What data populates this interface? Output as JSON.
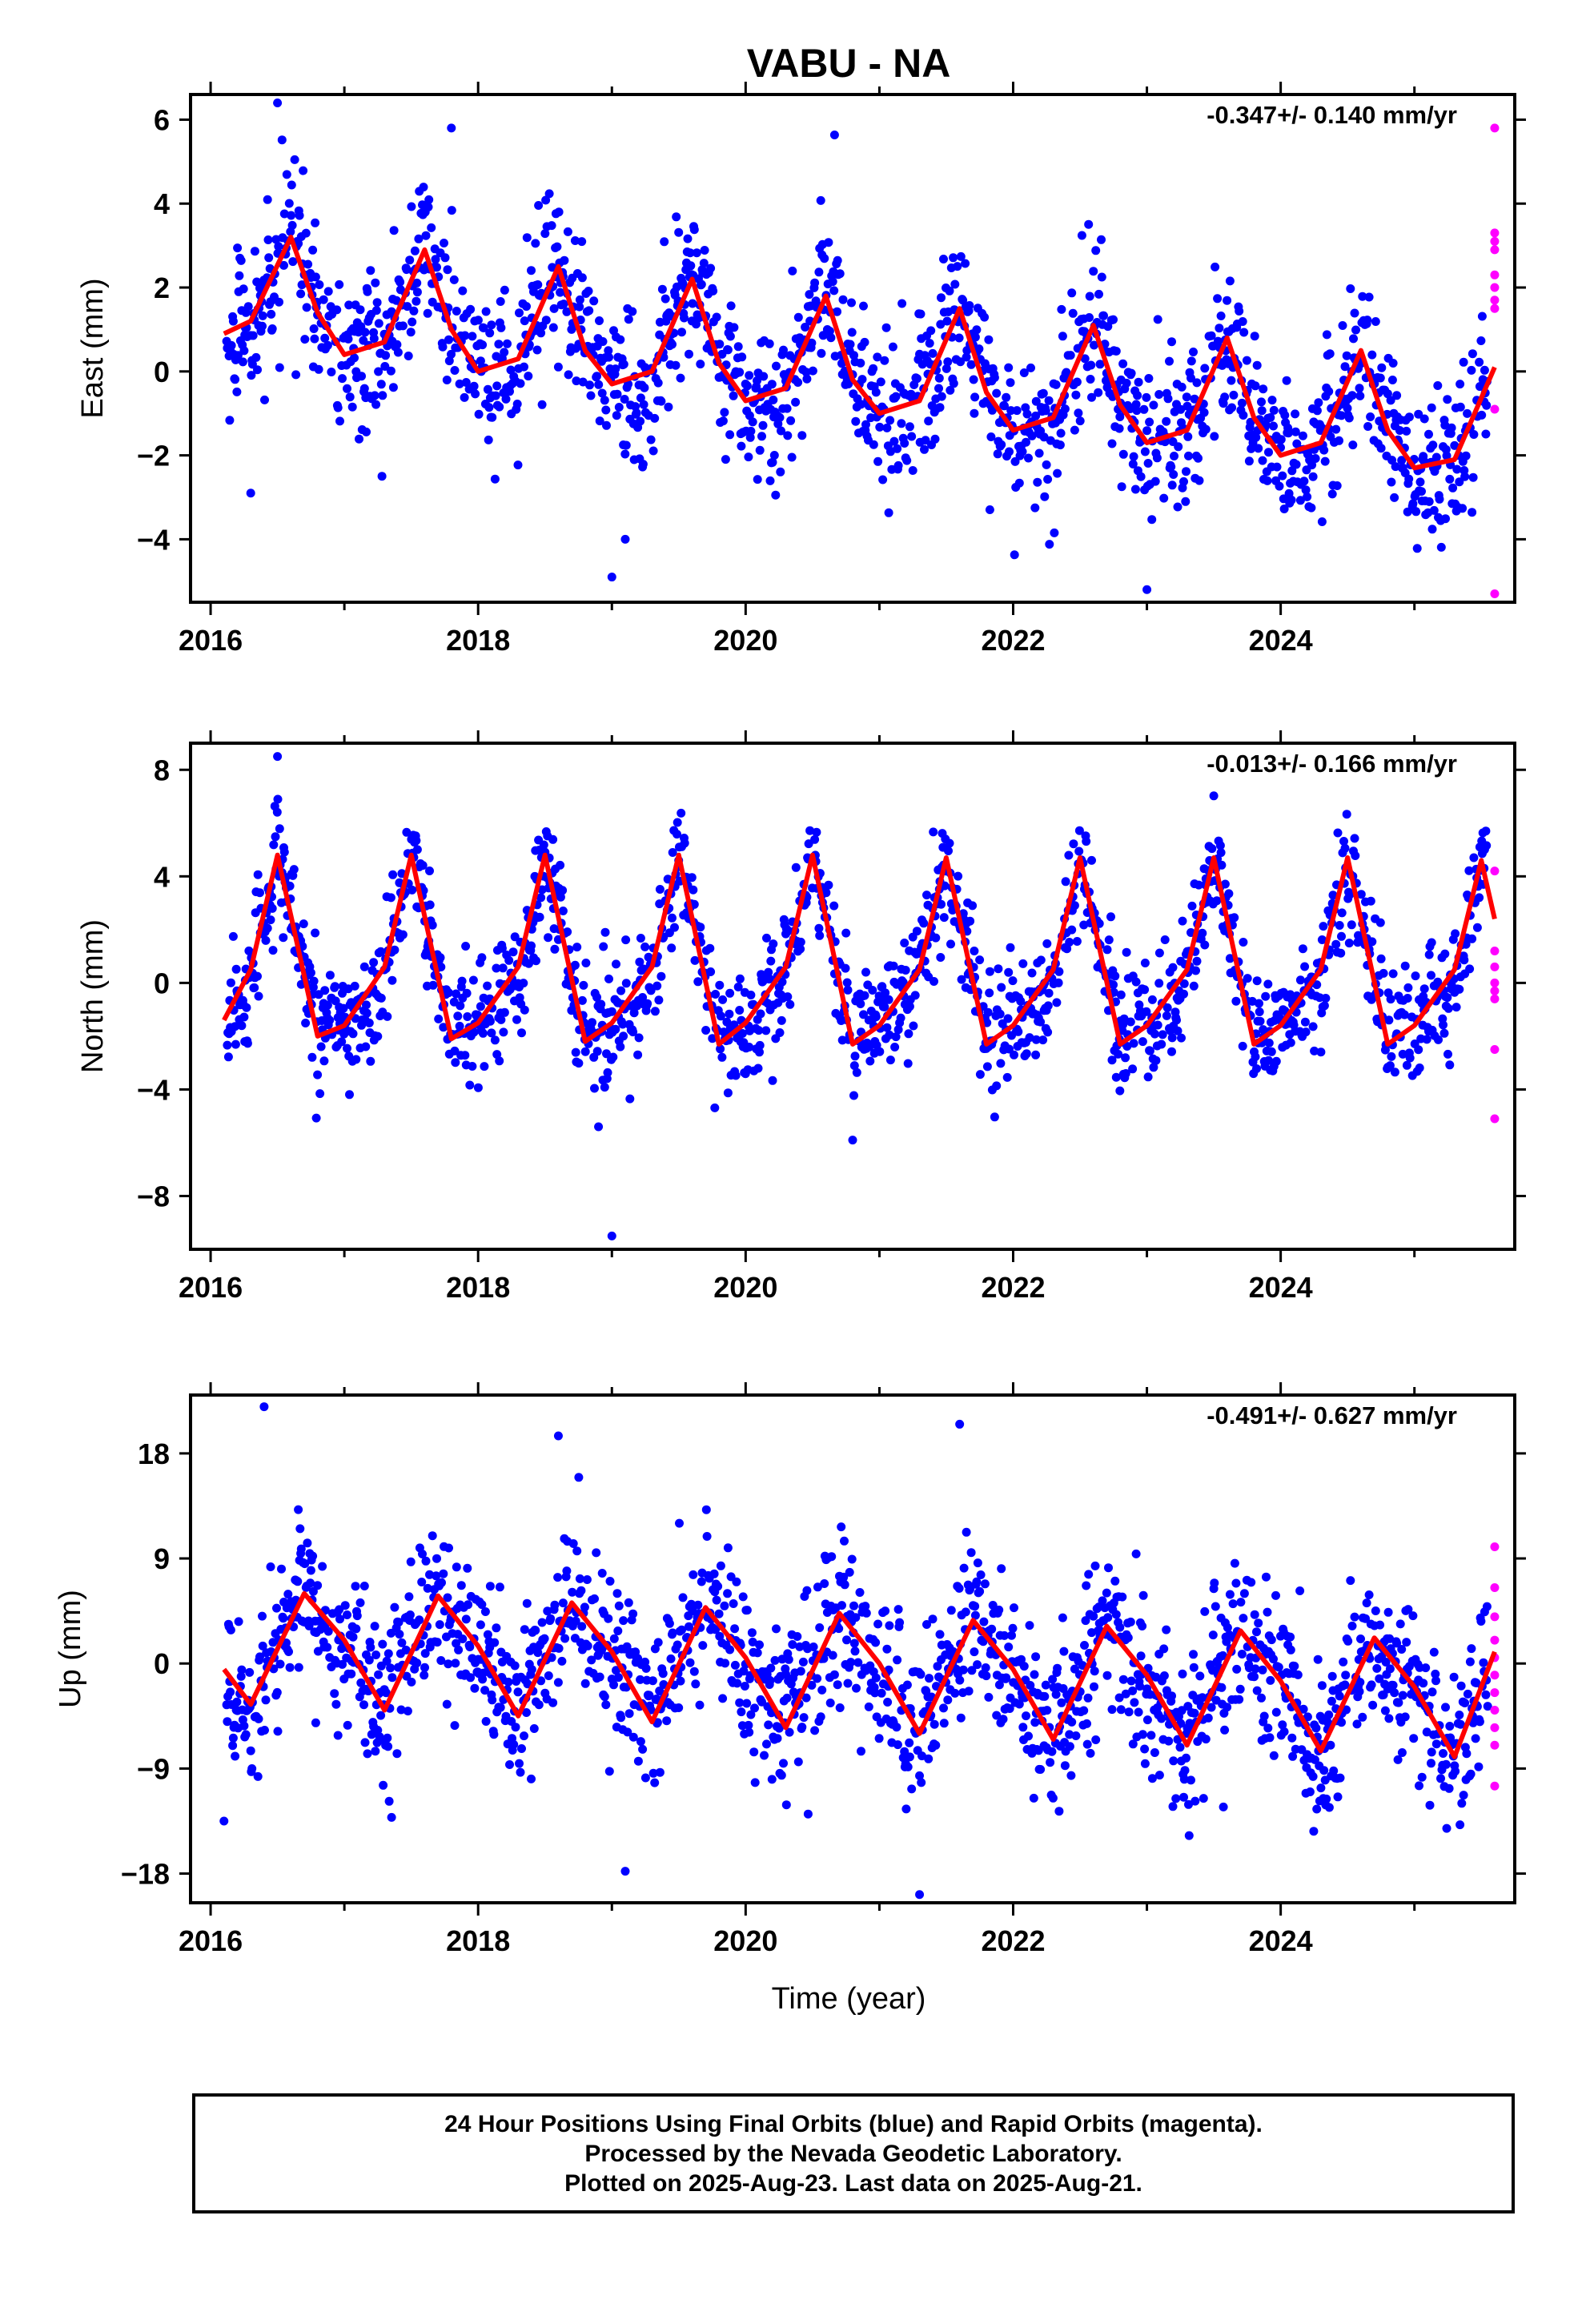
{
  "title": "VABU - NA",
  "xlabel": "Time (year)",
  "x_tick_labels": [
    "2016",
    "2018",
    "2020",
    "2022",
    "2024"
  ],
  "colors": {
    "final_orbits": "#0000ff",
    "rapid_orbits": "#ff00ff",
    "model_fit": "#ff0000"
  },
  "footer": {
    "line1": "24 Hour Positions Using Final Orbits (blue) and Rapid Orbits (magenta).",
    "line2": "Processed by the Nevada Geodetic Laboratory.",
    "line3": "Plotted on 2025-Aug-23. Last data on 2025-Aug-21."
  },
  "chart_data": [
    {
      "type": "scatter",
      "ylabel": "East (mm)",
      "rate": "-0.347+/- 0.140 mm/yr",
      "xlim": [
        2015.85,
        2025.75
      ],
      "ylim": [
        -5.5,
        6.6
      ],
      "y_ticks": [
        6,
        4,
        2,
        0,
        -2,
        -4
      ],
      "y_tick_labels": [
        "6",
        "4",
        "2",
        "0",
        "−2",
        "−4"
      ],
      "fit_curve": {
        "name": "model",
        "x": [
          2016.1,
          2016.3,
          2016.6,
          2016.8,
          2017.0,
          2017.3,
          2017.6,
          2017.8,
          2018.0,
          2018.3,
          2018.6,
          2018.8,
          2019.0,
          2019.3,
          2019.6,
          2019.8,
          2020.0,
          2020.3,
          2020.6,
          2020.8,
          2021.0,
          2021.3,
          2021.6,
          2021.8,
          2022.0,
          2022.3,
          2022.6,
          2022.8,
          2023.0,
          2023.3,
          2023.6,
          2023.8,
          2024.0,
          2024.3,
          2024.6,
          2024.8,
          2025.0,
          2025.3,
          2025.6
        ],
        "y": [
          0.9,
          1.2,
          3.2,
          1.4,
          0.4,
          0.7,
          2.9,
          1.0,
          0.0,
          0.3,
          2.5,
          0.5,
          -0.3,
          0.0,
          2.2,
          0.2,
          -0.7,
          -0.4,
          1.8,
          -0.2,
          -1.0,
          -0.7,
          1.5,
          -0.5,
          -1.4,
          -1.1,
          1.1,
          -0.8,
          -1.7,
          -1.4,
          0.8,
          -1.1,
          -2.0,
          -1.7,
          0.5,
          -1.4,
          -2.3,
          -2.1,
          0.1
        ]
      },
      "outliers_final": {
        "x": [
          2016.5,
          2019.0,
          2019.1,
          2023.0,
          2016.3,
          2017.8
        ],
        "y": [
          6.4,
          -4.9,
          -4.0,
          -5.2,
          -2.9,
          5.8
        ]
      },
      "rapid_points": {
        "x": [
          2025.6,
          2025.6,
          2025.6,
          2025.6,
          2025.6,
          2025.6,
          2025.6,
          2025.6,
          2025.6,
          2025.6
        ],
        "y": [
          5.8,
          3.3,
          3.1,
          2.9,
          2.3,
          2.0,
          1.7,
          1.5,
          -0.9,
          -5.3
        ]
      },
      "scatter_model": {
        "amp": 2.0,
        "trend": -0.347,
        "offset": 1.4,
        "noise": 0.9,
        "phase": 0.6
      }
    },
    {
      "type": "scatter",
      "ylabel": "North (mm)",
      "rate": "-0.013+/- 0.166 mm/yr",
      "xlim": [
        2015.85,
        2025.75
      ],
      "ylim": [
        -10.0,
        9.0
      ],
      "y_ticks": [
        8,
        4,
        0,
        -4,
        -8
      ],
      "y_tick_labels": [
        "8",
        "4",
        "0",
        "−4",
        "−8"
      ],
      "fit_curve": {
        "name": "model",
        "x": [
          2016.1,
          2016.3,
          2016.5,
          2016.8,
          2017.0,
          2017.3,
          2017.5,
          2017.8,
          2018.0,
          2018.3,
          2018.5,
          2018.8,
          2019.0,
          2019.3,
          2019.5,
          2019.8,
          2020.0,
          2020.3,
          2020.5,
          2020.8,
          2021.0,
          2021.3,
          2021.5,
          2021.8,
          2022.0,
          2022.3,
          2022.5,
          2022.8,
          2023.0,
          2023.3,
          2023.5,
          2023.8,
          2024.0,
          2024.3,
          2024.5,
          2024.8,
          2025.0,
          2025.3,
          2025.5,
          2025.6
        ],
        "y": [
          -1.4,
          0.5,
          4.8,
          -2.0,
          -1.6,
          0.6,
          4.8,
          -2.1,
          -1.5,
          0.6,
          4.8,
          -2.2,
          -1.5,
          0.6,
          4.8,
          -2.3,
          -1.5,
          0.6,
          4.8,
          -2.3,
          -1.6,
          0.5,
          4.7,
          -2.3,
          -1.6,
          0.5,
          4.7,
          -2.3,
          -1.6,
          0.5,
          4.7,
          -2.3,
          -1.6,
          0.5,
          4.7,
          -2.3,
          -1.6,
          0.5,
          4.6,
          2.4
        ]
      },
      "outliers_final": {
        "x": [
          2016.5,
          2019.0,
          2020.8,
          2018.9
        ],
        "y": [
          8.5,
          -9.5,
          -5.9,
          -5.4
        ]
      },
      "rapid_points": {
        "x": [
          2025.6,
          2025.6,
          2025.6,
          2025.6,
          2025.6,
          2025.6,
          2025.6,
          2025.6
        ],
        "y": [
          4.2,
          1.2,
          0.6,
          0.0,
          -0.3,
          -0.6,
          -2.5,
          -5.1
        ]
      },
      "scatter_model": {
        "amp": 3.5,
        "trend": -0.013,
        "offset": 1.2,
        "noise": 1.1,
        "phase": 0.5
      }
    },
    {
      "type": "scatter",
      "ylabel": "Up (mm)",
      "rate": "-0.491+/- 0.627 mm/yr",
      "xlim": [
        2015.85,
        2025.75
      ],
      "ylim": [
        -20.5,
        23.0
      ],
      "y_ticks": [
        18,
        9,
        0,
        -9,
        -18
      ],
      "y_tick_labels": [
        "18",
        "9",
        "0",
        "−9",
        "−18"
      ],
      "fit_curve": {
        "name": "model",
        "x": [
          2016.1,
          2016.3,
          2016.7,
          2017.0,
          2017.3,
          2017.7,
          2018.0,
          2018.3,
          2018.7,
          2019.0,
          2019.3,
          2019.7,
          2020.0,
          2020.3,
          2020.7,
          2021.0,
          2021.3,
          2021.7,
          2022.0,
          2022.3,
          2022.7,
          2023.0,
          2023.3,
          2023.7,
          2024.0,
          2024.3,
          2024.7,
          2025.0,
          2025.3,
          2025.6
        ],
        "y": [
          -0.5,
          -3.5,
          6.0,
          2.0,
          -4.0,
          5.8,
          1.5,
          -4.5,
          5.2,
          1.0,
          -5.0,
          4.8,
          0.5,
          -5.5,
          4.3,
          0.0,
          -6.0,
          3.7,
          -0.5,
          -6.5,
          3.2,
          -1.0,
          -7.0,
          2.8,
          -1.5,
          -7.5,
          2.2,
          -2.0,
          -8.0,
          1.0
        ]
      },
      "outliers_final": {
        "x": [
          2016.4,
          2018.6,
          2021.6,
          2021.3,
          2019.1,
          2016.1
        ],
        "y": [
          22.0,
          19.5,
          20.5,
          -19.8,
          -17.8,
          -13.5
        ]
      },
      "rapid_points": {
        "x": [
          2025.6,
          2025.6,
          2025.6,
          2025.6,
          2025.6,
          2025.6,
          2025.6,
          2025.6,
          2025.6,
          2025.6,
          2025.6
        ],
        "y": [
          10.0,
          6.5,
          4.0,
          2.0,
          0.5,
          -1.0,
          -2.5,
          -4.0,
          -5.5,
          -7.0,
          -10.5
        ]
      },
      "scatter_model": {
        "amp": 6.0,
        "trend": -0.491,
        "offset": 2.5,
        "noise": 3.5,
        "phase": 0.7
      }
    }
  ]
}
